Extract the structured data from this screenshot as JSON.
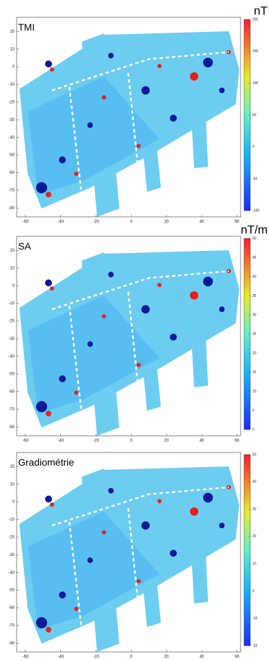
{
  "panels": [
    {
      "title": "TMI",
      "unit": "nT",
      "xlim": [
        -65,
        62
      ],
      "xticks": [
        -60,
        -40,
        -20,
        0,
        20,
        40,
        60
      ],
      "ylim": [
        -85,
        28
      ],
      "yticks": [
        20,
        10,
        0,
        -10,
        -20,
        -30,
        -40,
        -50,
        -60,
        -70,
        -80
      ],
      "colorbar": {
        "lim": [
          -100,
          200
        ],
        "ticks": [
          200,
          150,
          100,
          50,
          0,
          -50,
          -100
        ]
      }
    },
    {
      "title": "SA",
      "unit": "nT/m",
      "xlim": [
        -65,
        62
      ],
      "xticks": [
        -60,
        -40,
        -20,
        0,
        20,
        40,
        60
      ],
      "ylim": [
        -85,
        28
      ],
      "yticks": [
        20,
        10,
        0,
        -10,
        -20,
        -30,
        -40,
        -50,
        -60,
        -70,
        -80
      ],
      "colorbar": {
        "lim": [
          0,
          50
        ],
        "ticks": [
          50,
          45,
          40,
          35,
          30,
          25,
          20,
          15,
          10,
          5,
          0
        ]
      }
    },
    {
      "title": "Gradiométrie",
      "xlim": [
        -65,
        62
      ],
      "xticks": [
        -60,
        -40,
        -20,
        0,
        20,
        40,
        60
      ],
      "ylim": [
        -85,
        28
      ],
      "yticks": [
        20,
        10,
        0,
        -10,
        -20,
        -30,
        -40,
        -50,
        -60,
        -70,
        -80
      ],
      "colorbar": {
        "lim": [
          -20,
          50
        ],
        "ticks": [
          50,
          40,
          30,
          20,
          10,
          0,
          -10,
          -20
        ]
      }
    }
  ]
}
